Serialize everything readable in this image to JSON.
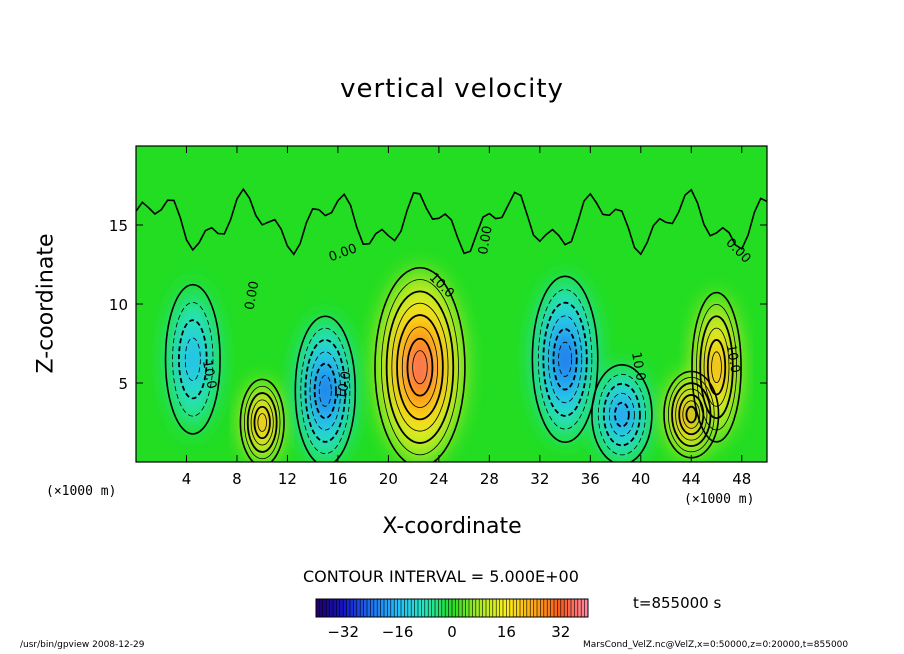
{
  "chart_data": {
    "type": "heatmap",
    "title": "vertical velocity",
    "xlabel": "X-coordinate",
    "ylabel": "Z-coordinate",
    "x_scale_label": "(×1000 m)",
    "y_scale_label": "(×1000 m)",
    "xlim": [
      0,
      50
    ],
    "ylim": [
      0,
      20
    ],
    "xticks": [
      4,
      8,
      12,
      16,
      20,
      24,
      28,
      32,
      36,
      40,
      44,
      48
    ],
    "yticks": [
      5,
      10,
      15
    ],
    "contour_interval_text": "CONTOUR INTERVAL = 5.000E+00",
    "contour_labels": [
      "0.00",
      "0.00",
      "0.00",
      "0.00",
      "10.0",
      "10.0",
      "10.0",
      "10.0",
      "10.0"
    ],
    "colorbar": {
      "min": -40,
      "max": 40,
      "ticks": [
        -32,
        -16,
        0,
        16,
        32
      ]
    },
    "cells": [
      {
        "x": 4.5,
        "z": 6.5,
        "w": -18,
        "rx": 2.0,
        "rz": 4.5
      },
      {
        "x": 10.0,
        "z": 2.5,
        "w": 30,
        "rx": 1.6,
        "rz": 2.6
      },
      {
        "x": 15.0,
        "z": 4.5,
        "w": -28,
        "rx": 2.2,
        "rz": 4.5
      },
      {
        "x": 22.5,
        "z": 6.0,
        "w": 38,
        "rx": 3.3,
        "rz": 6.0
      },
      {
        "x": 34.0,
        "z": 6.5,
        "w": -28,
        "rx": 2.4,
        "rz": 5.0
      },
      {
        "x": 38.5,
        "z": 3.0,
        "w": -22,
        "rx": 2.2,
        "rz": 3.0
      },
      {
        "x": 44.0,
        "z": 3.0,
        "w": 32,
        "rx": 2.0,
        "rz": 2.6
      },
      {
        "x": 46.0,
        "z": 6.0,
        "w": 28,
        "rx": 1.8,
        "rz": 4.5
      }
    ]
  },
  "annotations": {
    "time_label": "t=855000 s",
    "footer_left": "/usr/bin/gpview  2008-12-29",
    "footer_right": "MarsCond_VelZ.nc@VelZ,x=0:50000,z=0:20000,t=855000"
  },
  "colors": {
    "background": "#22dd22",
    "negative_extreme": "#220066",
    "positive_extreme": "#ff88aa"
  }
}
